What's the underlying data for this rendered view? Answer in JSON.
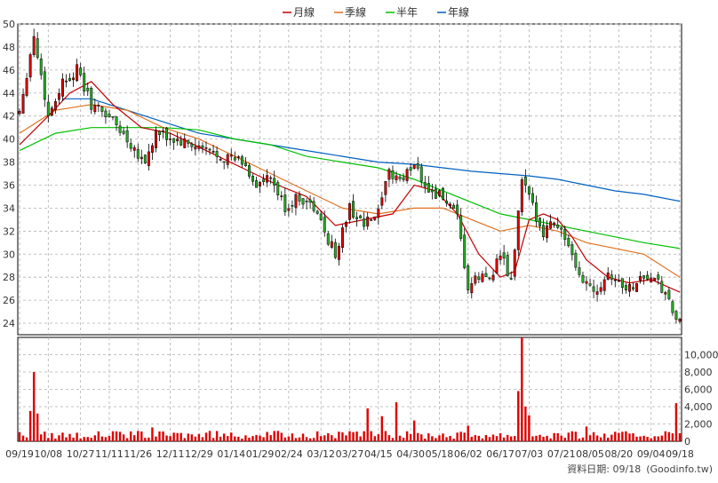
{
  "chart_data": {
    "type": "candlestick+volume",
    "legend": [
      {
        "name": "月線",
        "color": "#c00000"
      },
      {
        "name": "季線",
        "color": "#e07020"
      },
      {
        "name": "半年",
        "color": "#00c000"
      },
      {
        "name": "年線",
        "color": "#0060c0"
      }
    ],
    "x_labels": [
      "09/19",
      "10/08",
      "10/27",
      "11/11",
      "11/26",
      "12/11",
      "12/29",
      "01/14",
      "01/29",
      "02/24",
      "03/12",
      "03/27",
      "04/15",
      "04/30",
      "05/18",
      "06/02",
      "06/17",
      "07/03",
      "07/21",
      "08/05",
      "08/20",
      "09/04",
      "09/18"
    ],
    "price_axis": {
      "ylim": [
        23,
        50
      ],
      "ticks": [
        24,
        26,
        28,
        30,
        32,
        34,
        36,
        38,
        40,
        42,
        44,
        46,
        48,
        50
      ]
    },
    "volume_axis": {
      "ylim": [
        0,
        12000
      ],
      "ticks": [
        "0",
        "2,000",
        "4,000",
        "6,000",
        "8,000",
        "10,000"
      ]
    },
    "price_keypoints": [
      {
        "x": 0,
        "close": 42.5
      },
      {
        "x": 4,
        "close": 49
      },
      {
        "x": 8,
        "close": 42
      },
      {
        "x": 12,
        "close": 45
      },
      {
        "x": 16,
        "close": 46
      },
      {
        "x": 20,
        "close": 43
      },
      {
        "x": 25,
        "close": 42
      },
      {
        "x": 30,
        "close": 40
      },
      {
        "x": 35,
        "close": 38
      },
      {
        "x": 38,
        "close": 40.5
      },
      {
        "x": 42,
        "close": 40
      },
      {
        "x": 47,
        "close": 39.5
      },
      {
        "x": 52,
        "close": 39
      },
      {
        "x": 57,
        "close": 38.5
      },
      {
        "x": 62,
        "close": 38
      },
      {
        "x": 66,
        "close": 36
      },
      {
        "x": 70,
        "close": 36.5
      },
      {
        "x": 74,
        "close": 34
      },
      {
        "x": 78,
        "close": 35
      },
      {
        "x": 82,
        "close": 34
      },
      {
        "x": 85,
        "close": 32
      },
      {
        "x": 88,
        "close": 30
      },
      {
        "x": 92,
        "close": 34
      },
      {
        "x": 96,
        "close": 32.5
      },
      {
        "x": 100,
        "close": 33.5
      },
      {
        "x": 103,
        "close": 37
      },
      {
        "x": 107,
        "close": 36.5
      },
      {
        "x": 110,
        "close": 38
      },
      {
        "x": 114,
        "close": 35.5
      },
      {
        "x": 118,
        "close": 35
      },
      {
        "x": 122,
        "close": 33
      },
      {
        "x": 125,
        "close": 27
      },
      {
        "x": 128,
        "close": 28
      },
      {
        "x": 131,
        "close": 28
      },
      {
        "x": 134,
        "close": 30
      },
      {
        "x": 137,
        "close": 27.5
      },
      {
        "x": 140,
        "close": 36.5
      },
      {
        "x": 143,
        "close": 34
      },
      {
        "x": 146,
        "close": 32
      },
      {
        "x": 149,
        "close": 33
      },
      {
        "x": 152,
        "close": 31.5
      },
      {
        "x": 155,
        "close": 28.5
      },
      {
        "x": 158,
        "close": 27.5
      },
      {
        "x": 161,
        "close": 27
      },
      {
        "x": 164,
        "close": 28.5
      },
      {
        "x": 167,
        "close": 27.5
      },
      {
        "x": 170,
        "close": 27
      },
      {
        "x": 173,
        "close": 28
      },
      {
        "x": 176,
        "close": 28
      },
      {
        "x": 179,
        "close": 27
      },
      {
        "x": 182,
        "close": 25
      },
      {
        "x": 184,
        "close": 24
      }
    ],
    "ma_month": [
      [
        0,
        39.5
      ],
      [
        8,
        42
      ],
      [
        14,
        44
      ],
      [
        20,
        45
      ],
      [
        26,
        43
      ],
      [
        34,
        41
      ],
      [
        42,
        40.5
      ],
      [
        52,
        39
      ],
      [
        62,
        37.5
      ],
      [
        72,
        36
      ],
      [
        80,
        35
      ],
      [
        88,
        32.5
      ],
      [
        96,
        33
      ],
      [
        104,
        33.5
      ],
      [
        110,
        36
      ],
      [
        116,
        35.5
      ],
      [
        122,
        33.5
      ],
      [
        128,
        30
      ],
      [
        134,
        28
      ],
      [
        138,
        28.5
      ],
      [
        142,
        33
      ],
      [
        146,
        33.5
      ],
      [
        150,
        33
      ],
      [
        154,
        31.5
      ],
      [
        158,
        29.5
      ],
      [
        164,
        28
      ],
      [
        170,
        27.5
      ],
      [
        176,
        27.8
      ],
      [
        184,
        26.7
      ]
    ],
    "ma_quarter": [
      [
        0,
        40.5
      ],
      [
        10,
        42.5
      ],
      [
        20,
        43
      ],
      [
        30,
        42.5
      ],
      [
        40,
        41
      ],
      [
        50,
        40
      ],
      [
        60,
        38.5
      ],
      [
        70,
        37
      ],
      [
        80,
        35.5
      ],
      [
        90,
        34
      ],
      [
        100,
        33.5
      ],
      [
        110,
        34
      ],
      [
        118,
        34
      ],
      [
        126,
        33
      ],
      [
        134,
        32
      ],
      [
        142,
        32.5
      ],
      [
        150,
        32
      ],
      [
        158,
        31
      ],
      [
        166,
        30.5
      ],
      [
        174,
        30
      ],
      [
        184,
        28
      ]
    ],
    "ma_half": [
      [
        0,
        39
      ],
      [
        10,
        40.5
      ],
      [
        20,
        41
      ],
      [
        30,
        41
      ],
      [
        40,
        41
      ],
      [
        50,
        40.8
      ],
      [
        60,
        40
      ],
      [
        70,
        39.5
      ],
      [
        80,
        38.5
      ],
      [
        90,
        38
      ],
      [
        100,
        37.5
      ],
      [
        110,
        36.5
      ],
      [
        118,
        35.5
      ],
      [
        126,
        34.5
      ],
      [
        134,
        33.5
      ],
      [
        142,
        33
      ],
      [
        150,
        32.5
      ],
      [
        158,
        32
      ],
      [
        166,
        31.5
      ],
      [
        174,
        31
      ],
      [
        184,
        30.5
      ]
    ],
    "ma_year": [
      [
        12,
        43.5
      ],
      [
        20,
        43.5
      ],
      [
        30,
        42.5
      ],
      [
        40,
        41.5
      ],
      [
        50,
        40.5
      ],
      [
        60,
        40
      ],
      [
        70,
        39.5
      ],
      [
        80,
        39
      ],
      [
        90,
        38.5
      ],
      [
        100,
        38
      ],
      [
        110,
        37.8
      ],
      [
        118,
        37.5
      ],
      [
        126,
        37.2
      ],
      [
        134,
        37
      ],
      [
        142,
        36.8
      ],
      [
        150,
        36.5
      ],
      [
        158,
        36
      ],
      [
        166,
        35.5
      ],
      [
        174,
        35.2
      ],
      [
        184,
        34.6
      ]
    ],
    "volume_spikes": [
      {
        "x": 4,
        "v": 8000
      },
      {
        "x": 3,
        "v": 3500
      },
      {
        "x": 5,
        "v": 3200
      },
      {
        "x": 37,
        "v": 1600
      },
      {
        "x": 97,
        "v": 3800
      },
      {
        "x": 101,
        "v": 2900
      },
      {
        "x": 105,
        "v": 4500
      },
      {
        "x": 110,
        "v": 2400
      },
      {
        "x": 125,
        "v": 1800
      },
      {
        "x": 139,
        "v": 5800
      },
      {
        "x": 140,
        "v": 12000
      },
      {
        "x": 141,
        "v": 4000
      },
      {
        "x": 142,
        "v": 3000
      },
      {
        "x": 158,
        "v": 1700
      },
      {
        "x": 183,
        "v": 4400
      }
    ]
  },
  "footer": {
    "source": "資料日期: 09/18",
    "site": "(Goodinfo.tw)"
  }
}
